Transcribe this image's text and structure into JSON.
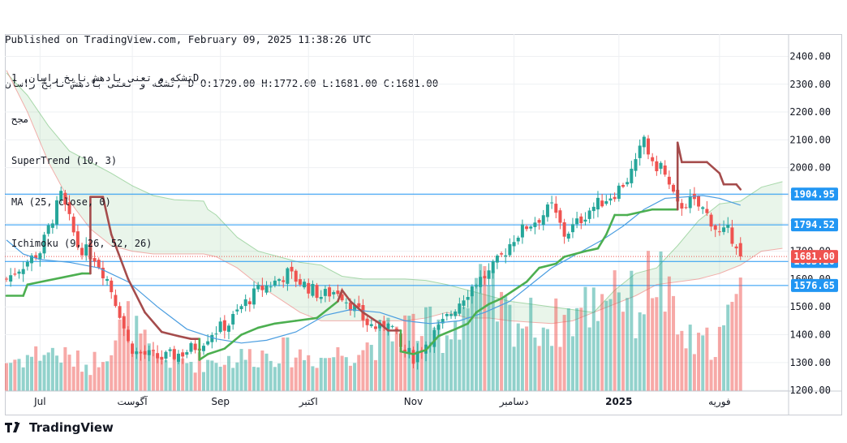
{
  "header": {
    "line1": "Published on TradingView.com, February 09, 2025 11:38:26 UTC",
    "line2": "تشکه و تعنی بادهش نابخ راسان, D O:1729.00 H:1772.00 L:1681.00 C:1681.00"
  },
  "legend": {
    "title": "تشکه و تعنی بادهش نابخ راسان, 1D",
    "subtitle": "مجح",
    "indicators": [
      "SuperTrend (10, 3)",
      "MA (25, close, 0)",
      "Ichimoku (9, 26, 52, 26)"
    ]
  },
  "footer": {
    "brand": "TradingView"
  },
  "colors": {
    "up": "#26a69a",
    "down": "#ef5350",
    "supertrend_up": "#4caf50",
    "supertrend_down": "#a54c4c",
    "ma": "#4a9de0",
    "hline": "#2196f3"
  },
  "chart_data": {
    "type": "candlestick",
    "timeframe": "1D",
    "ylim": [
      1180,
      2480
    ],
    "y_ticks": [
      1200,
      1300,
      1400,
      1500,
      1600,
      1700,
      1800,
      1900,
      2000,
      2100,
      2200,
      2300,
      2400
    ],
    "x_ticks": [
      {
        "label": "Jul",
        "bar": 8
      },
      {
        "label": "آگوست",
        "bar": 30
      },
      {
        "label": "Sep",
        "bar": 51
      },
      {
        "label": "اکتبر",
        "bar": 72
      },
      {
        "label": "Nov",
        "bar": 97
      },
      {
        "label": "دسامبر",
        "bar": 121
      },
      {
        "label": "2025",
        "bar": 146
      },
      {
        "label": "فوریه",
        "bar": 170
      }
    ],
    "price_lines": [
      {
        "value": 1904.95,
        "label": "1904.95"
      },
      {
        "value": 1794.52,
        "label": "1794.52"
      },
      {
        "value": 1663.2,
        "label": "1663.20"
      },
      {
        "value": 1576.65,
        "label": "1576.65"
      }
    ],
    "last_price": {
      "value": 1681.0,
      "label": "1681.00"
    },
    "anchors": [
      [
        0,
        1600
      ],
      [
        3,
        1640
      ],
      [
        8,
        1700
      ],
      [
        11,
        1820
      ],
      [
        13,
        1900
      ],
      [
        17,
        1720
      ],
      [
        21,
        1680
      ],
      [
        24,
        1600
      ],
      [
        27,
        1480
      ],
      [
        29,
        1370
      ],
      [
        31,
        1335
      ],
      [
        34,
        1325
      ],
      [
        37,
        1315
      ],
      [
        42,
        1335
      ],
      [
        46,
        1365
      ],
      [
        49,
        1410
      ],
      [
        53,
        1440
      ],
      [
        56,
        1500
      ],
      [
        60,
        1560
      ],
      [
        64,
        1590
      ],
      [
        67,
        1620
      ],
      [
        70,
        1590
      ],
      [
        75,
        1540
      ],
      [
        79,
        1560
      ],
      [
        82,
        1510
      ],
      [
        86,
        1440
      ],
      [
        89,
        1420
      ],
      [
        91,
        1460
      ],
      [
        94,
        1350
      ],
      [
        97,
        1320
      ],
      [
        100,
        1370
      ],
      [
        103,
        1420
      ],
      [
        106,
        1480
      ],
      [
        109,
        1540
      ],
      [
        112,
        1590
      ],
      [
        115,
        1620
      ],
      [
        118,
        1680
      ],
      [
        121,
        1750
      ],
      [
        124,
        1790
      ],
      [
        127,
        1820
      ],
      [
        130,
        1860
      ],
      [
        133,
        1760
      ],
      [
        136,
        1800
      ],
      [
        139,
        1850
      ],
      [
        142,
        1880
      ],
      [
        145,
        1910
      ],
      [
        148,
        1960
      ],
      [
        150,
        2010
      ],
      [
        152,
        2110
      ],
      [
        154,
        2000
      ],
      [
        156,
        2010
      ],
      [
        158,
        1930
      ],
      [
        160,
        1860
      ],
      [
        163,
        1880
      ],
      [
        166,
        1850
      ],
      [
        168,
        1810
      ],
      [
        170,
        1760
      ],
      [
        172,
        1770
      ],
      [
        174,
        1730
      ],
      [
        175,
        1681
      ]
    ],
    "volume_anchors": [
      [
        0,
        40
      ],
      [
        10,
        55
      ],
      [
        20,
        35
      ],
      [
        29,
        95
      ],
      [
        35,
        45
      ],
      [
        45,
        40
      ],
      [
        55,
        45
      ],
      [
        65,
        55
      ],
      [
        75,
        45
      ],
      [
        85,
        60
      ],
      [
        95,
        90
      ],
      [
        105,
        80
      ],
      [
        112,
        140
      ],
      [
        120,
        100
      ],
      [
        130,
        90
      ],
      [
        140,
        120
      ],
      [
        145,
        160
      ],
      [
        150,
        110
      ],
      [
        155,
        170
      ],
      [
        160,
        80
      ],
      [
        165,
        60
      ],
      [
        170,
        75
      ],
      [
        175,
        120
      ]
    ],
    "supertrend": [
      [
        0,
        1540
      ],
      [
        4,
        1540
      ],
      [
        5,
        1580
      ],
      [
        18,
        1620
      ],
      [
        20,
        1620
      ],
      [
        20,
        1895
      ],
      [
        23,
        1895
      ],
      [
        25,
        1760
      ],
      [
        29,
        1600
      ],
      [
        33,
        1480
      ],
      [
        37,
        1410
      ],
      [
        41,
        1395
      ],
      [
        44,
        1385
      ],
      [
        46,
        1385
      ],
      [
        46,
        1310
      ],
      [
        48,
        1330
      ],
      [
        52,
        1350
      ],
      [
        56,
        1400
      ],
      [
        60,
        1425
      ],
      [
        64,
        1440
      ],
      [
        69,
        1450
      ],
      [
        74,
        1460
      ],
      [
        79,
        1520
      ],
      [
        80,
        1560
      ],
      [
        82,
        1520
      ],
      [
        85,
        1480
      ],
      [
        89,
        1440
      ],
      [
        91,
        1415
      ],
      [
        94,
        1415
      ],
      [
        94,
        1340
      ],
      [
        97,
        1330
      ],
      [
        100,
        1345
      ],
      [
        103,
        1395
      ],
      [
        107,
        1420
      ],
      [
        110,
        1440
      ],
      [
        112,
        1480
      ],
      [
        115,
        1510
      ],
      [
        118,
        1530
      ],
      [
        121,
        1560
      ],
      [
        124,
        1590
      ],
      [
        127,
        1640
      ],
      [
        131,
        1655
      ],
      [
        133,
        1680
      ],
      [
        138,
        1700
      ],
      [
        141,
        1710
      ],
      [
        143,
        1760
      ],
      [
        145,
        1830
      ],
      [
        148,
        1830
      ],
      [
        154,
        1850
      ],
      [
        158,
        1850
      ],
      [
        160,
        1850
      ],
      [
        160,
        2090
      ],
      [
        161,
        2020
      ],
      [
        167,
        2020
      ],
      [
        170,
        1980
      ],
      [
        171,
        1940
      ],
      [
        174,
        1940
      ],
      [
        175,
        1922
      ]
    ],
    "ma": [
      [
        0,
        1740
      ],
      [
        4,
        1690
      ],
      [
        8,
        1670
      ],
      [
        15,
        1660
      ],
      [
        22,
        1640
      ],
      [
        29,
        1590
      ],
      [
        36,
        1500
      ],
      [
        43,
        1420
      ],
      [
        50,
        1385
      ],
      [
        56,
        1370
      ],
      [
        62,
        1380
      ],
      [
        69,
        1410
      ],
      [
        76,
        1470
      ],
      [
        82,
        1490
      ],
      [
        89,
        1480
      ],
      [
        95,
        1450
      ],
      [
        101,
        1440
      ],
      [
        108,
        1450
      ],
      [
        114,
        1480
      ],
      [
        120,
        1520
      ],
      [
        125,
        1580
      ],
      [
        130,
        1640
      ],
      [
        136,
        1690
      ],
      [
        142,
        1740
      ],
      [
        147,
        1790
      ],
      [
        152,
        1850
      ],
      [
        157,
        1890
      ],
      [
        162,
        1895
      ],
      [
        166,
        1900
      ],
      [
        170,
        1890
      ],
      [
        175,
        1865
      ]
    ],
    "cloud_upper": [
      [
        0,
        2340
      ],
      [
        5,
        2260
      ],
      [
        10,
        2150
      ],
      [
        15,
        2060
      ],
      [
        20,
        2020
      ],
      [
        25,
        1980
      ],
      [
        30,
        1935
      ],
      [
        35,
        1900
      ],
      [
        40,
        1885
      ],
      [
        47,
        1880
      ],
      [
        48,
        1850
      ],
      [
        50,
        1830
      ],
      [
        55,
        1750
      ],
      [
        60,
        1700
      ],
      [
        65,
        1680
      ],
      [
        70,
        1660
      ],
      [
        75,
        1650
      ],
      [
        80,
        1610
      ],
      [
        85,
        1600
      ],
      [
        90,
        1600
      ],
      [
        95,
        1600
      ],
      [
        100,
        1595
      ],
      [
        105,
        1580
      ],
      [
        110,
        1560
      ],
      [
        115,
        1540
      ],
      [
        120,
        1520
      ],
      [
        125,
        1510
      ],
      [
        130,
        1500
      ],
      [
        135,
        1490
      ],
      [
        140,
        1480
      ],
      [
        145,
        1560
      ],
      [
        150,
        1620
      ],
      [
        155,
        1640
      ],
      [
        160,
        1720
      ],
      [
        165,
        1810
      ],
      [
        170,
        1870
      ],
      [
        175,
        1880
      ],
      [
        180,
        1930
      ],
      [
        185,
        1950
      ]
    ],
    "cloud_lower": [
      [
        0,
        2350
      ],
      [
        5,
        2200
      ],
      [
        10,
        2020
      ],
      [
        15,
        1880
      ],
      [
        20,
        1780
      ],
      [
        25,
        1720
      ],
      [
        30,
        1700
      ],
      [
        35,
        1690
      ],
      [
        40,
        1690
      ],
      [
        47,
        1690
      ],
      [
        50,
        1680
      ],
      [
        55,
        1640
      ],
      [
        60,
        1580
      ],
      [
        65,
        1530
      ],
      [
        70,
        1480
      ],
      [
        75,
        1450
      ],
      [
        80,
        1450
      ],
      [
        85,
        1450
      ],
      [
        90,
        1450
      ],
      [
        95,
        1450
      ],
      [
        100,
        1460
      ],
      [
        105,
        1480
      ],
      [
        110,
        1460
      ],
      [
        115,
        1460
      ],
      [
        120,
        1450
      ],
      [
        125,
        1445
      ],
      [
        130,
        1440
      ],
      [
        135,
        1450
      ],
      [
        140,
        1480
      ],
      [
        145,
        1510
      ],
      [
        150,
        1540
      ],
      [
        155,
        1580
      ],
      [
        160,
        1590
      ],
      [
        165,
        1600
      ],
      [
        170,
        1620
      ],
      [
        175,
        1650
      ],
      [
        180,
        1700
      ],
      [
        185,
        1710
      ]
    ]
  }
}
